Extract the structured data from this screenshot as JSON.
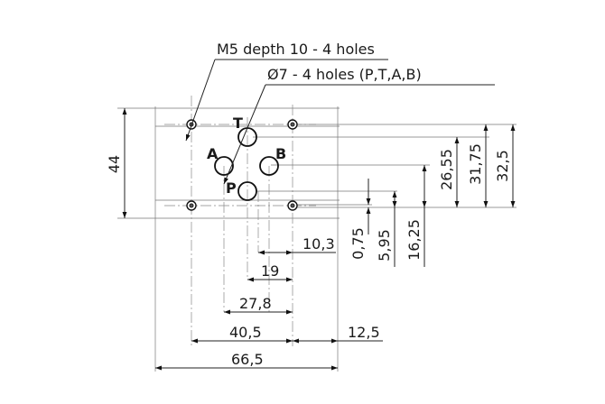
{
  "notes": {
    "m5_holes": "M5 depth 10 - 4 holes",
    "port_holes": "Ø7 - 4 holes (P,T,A,B)"
  },
  "ports": {
    "T": "T",
    "A": "A",
    "B": "B",
    "P": "P"
  },
  "dimensions": {
    "height_44": "44",
    "h_10_3": "10,3",
    "h_19": "19",
    "h_27_8": "27,8",
    "h_40_5": "40,5",
    "h_12_5": "12,5",
    "h_66_5": "66,5",
    "v_0_75": "0,75",
    "v_5_95": "5,95",
    "v_16_25": "16,25",
    "v_26_55": "26,55",
    "v_31_75": "31,75",
    "v_32_5": "32,5"
  }
}
